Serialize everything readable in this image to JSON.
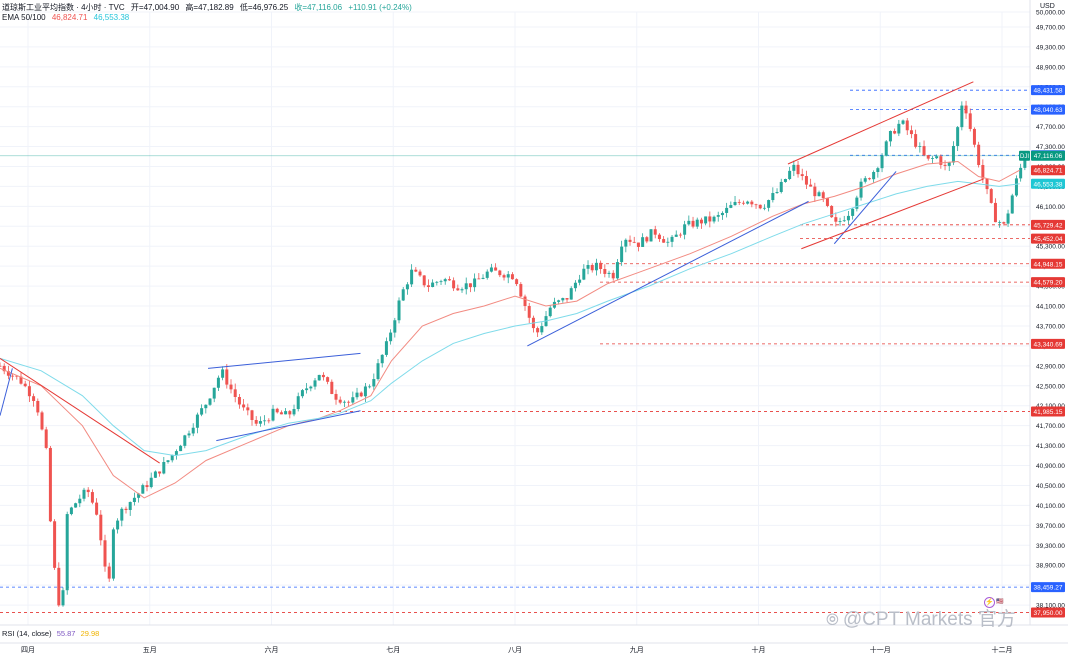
{
  "header": {
    "symbol": "道琼斯工业平均指数 · 4小时 · TVC",
    "open": "开=47,004.90",
    "high": "高=47,182.89",
    "low": "低=46,976.25",
    "close": "收=47,116.06",
    "change": "+110.91 (+0.24%)",
    "ema_label": "EMA 50/100",
    "ema50": "46,824.71",
    "ema100": "46,553.38"
  },
  "currency": "USD",
  "rsi": {
    "label": "RSI (14, close)",
    "value1": "55.87",
    "value2": "29.98"
  },
  "watermark": "@CPT Markets 官方",
  "colors": {
    "up": "#26a69a",
    "down": "#ef5350",
    "ema50": "#f28b82",
    "ema100": "#7fdbea",
    "trend_red": "#e53935",
    "trend_blue": "#3b5fd9",
    "level_red": "#e53935",
    "level_blue": "#2962ff"
  },
  "chart_data": {
    "type": "candlestick",
    "title": "道琼斯工业平均指数 · 4小时 · TVC",
    "y_axis": {
      "min": 37700,
      "max": 50000,
      "ticks": [
        38100,
        38500,
        38900,
        39300,
        39700,
        40100,
        40500,
        40900,
        41300,
        41700,
        42100,
        42500,
        42900,
        43300,
        43700,
        44100,
        44500,
        44900,
        45300,
        45700,
        46100,
        46500,
        46900,
        47300,
        47700,
        48100,
        48500,
        48900,
        49300,
        49700,
        50000
      ]
    },
    "x_axis": {
      "labels": [
        "四月",
        "五月",
        "六月",
        "七月",
        "八月",
        "九月",
        "十月",
        "十一月",
        "十二月"
      ]
    },
    "series": [
      {
        "name": "EMA 50",
        "points": [
          [
            0,
            42850
          ],
          [
            0.04,
            42500
          ],
          [
            0.08,
            41700
          ],
          [
            0.11,
            40700
          ],
          [
            0.14,
            40250
          ],
          [
            0.17,
            40550
          ],
          [
            0.2,
            41000
          ],
          [
            0.24,
            41350
          ],
          [
            0.28,
            41700
          ],
          [
            0.31,
            41850
          ],
          [
            0.33,
            42000
          ],
          [
            0.36,
            42300
          ],
          [
            0.38,
            43000
          ],
          [
            0.41,
            43700
          ],
          [
            0.44,
            43950
          ],
          [
            0.47,
            44100
          ],
          [
            0.5,
            44300
          ],
          [
            0.53,
            44100
          ],
          [
            0.56,
            44200
          ],
          [
            0.59,
            44550
          ],
          [
            0.63,
            44850
          ],
          [
            0.67,
            45150
          ],
          [
            0.71,
            45500
          ],
          [
            0.75,
            45900
          ],
          [
            0.78,
            46150
          ],
          [
            0.81,
            46300
          ],
          [
            0.84,
            46500
          ],
          [
            0.87,
            46750
          ],
          [
            0.9,
            46950
          ],
          [
            0.93,
            47000
          ],
          [
            0.95,
            46700
          ],
          [
            0.97,
            46600
          ],
          [
            0.99,
            46824.71
          ]
        ]
      },
      {
        "name": "EMA 100",
        "points": [
          [
            0,
            43050
          ],
          [
            0.04,
            42800
          ],
          [
            0.08,
            42300
          ],
          [
            0.11,
            41700
          ],
          [
            0.14,
            41200
          ],
          [
            0.17,
            41100
          ],
          [
            0.2,
            41200
          ],
          [
            0.24,
            41500
          ],
          [
            0.28,
            41750
          ],
          [
            0.31,
            41850
          ],
          [
            0.33,
            41950
          ],
          [
            0.36,
            42200
          ],
          [
            0.38,
            42550
          ],
          [
            0.41,
            43000
          ],
          [
            0.44,
            43350
          ],
          [
            0.47,
            43550
          ],
          [
            0.5,
            43700
          ],
          [
            0.53,
            43800
          ],
          [
            0.56,
            43950
          ],
          [
            0.59,
            44200
          ],
          [
            0.63,
            44500
          ],
          [
            0.67,
            44850
          ],
          [
            0.71,
            45150
          ],
          [
            0.75,
            45500
          ],
          [
            0.78,
            45750
          ],
          [
            0.81,
            45950
          ],
          [
            0.84,
            46150
          ],
          [
            0.87,
            46350
          ],
          [
            0.9,
            46500
          ],
          [
            0.93,
            46600
          ],
          [
            0.95,
            46550
          ],
          [
            0.97,
            46500
          ],
          [
            0.99,
            46553.38
          ]
        ]
      }
    ],
    "anchors": [
      [
        0,
        42900
      ],
      [
        0.02,
        42600
      ],
      [
        0.035,
        42200
      ],
      [
        0.045,
        41150
      ],
      [
        0.05,
        39400
      ],
      [
        0.055,
        38400
      ],
      [
        0.06,
        37850
      ],
      [
        0.065,
        39900
      ],
      [
        0.075,
        40200
      ],
      [
        0.085,
        40400
      ],
      [
        0.095,
        39900
      ],
      [
        0.105,
        38300
      ],
      [
        0.11,
        39700
      ],
      [
        0.12,
        40050
      ],
      [
        0.135,
        40350
      ],
      [
        0.15,
        40700
      ],
      [
        0.165,
        41050
      ],
      [
        0.18,
        41500
      ],
      [
        0.2,
        42150
      ],
      [
        0.215,
        42800
      ],
      [
        0.225,
        42400
      ],
      [
        0.235,
        42050
      ],
      [
        0.25,
        41700
      ],
      [
        0.265,
        41950
      ],
      [
        0.28,
        41900
      ],
      [
        0.295,
        42400
      ],
      [
        0.31,
        42750
      ],
      [
        0.325,
        42300
      ],
      [
        0.34,
        42150
      ],
      [
        0.36,
        42550
      ],
      [
        0.375,
        43300
      ],
      [
        0.39,
        44350
      ],
      [
        0.4,
        44800
      ],
      [
        0.415,
        44500
      ],
      [
        0.43,
        44650
      ],
      [
        0.445,
        44500
      ],
      [
        0.46,
        44550
      ],
      [
        0.475,
        44800
      ],
      [
        0.49,
        44750
      ],
      [
        0.5,
        44700
      ],
      [
        0.51,
        44100
      ],
      [
        0.52,
        43500
      ],
      [
        0.535,
        44100
      ],
      [
        0.55,
        44250
      ],
      [
        0.565,
        44800
      ],
      [
        0.58,
        44900
      ],
      [
        0.595,
        44700
      ],
      [
        0.605,
        45500
      ],
      [
        0.62,
        45350
      ],
      [
        0.635,
        45600
      ],
      [
        0.65,
        45350
      ],
      [
        0.665,
        45700
      ],
      [
        0.68,
        45800
      ],
      [
        0.695,
        45850
      ],
      [
        0.71,
        46100
      ],
      [
        0.725,
        46250
      ],
      [
        0.74,
        46100
      ],
      [
        0.755,
        46400
      ],
      [
        0.77,
        46900
      ],
      [
        0.785,
        46500
      ],
      [
        0.8,
        46200
      ],
      [
        0.81,
        45700
      ],
      [
        0.825,
        46000
      ],
      [
        0.835,
        46500
      ],
      [
        0.85,
        46850
      ],
      [
        0.865,
        47550
      ],
      [
        0.875,
        47800
      ],
      [
        0.885,
        47500
      ],
      [
        0.9,
        47000
      ],
      [
        0.91,
        47100
      ],
      [
        0.92,
        46800
      ],
      [
        0.93,
        47700
      ],
      [
        0.935,
        48300
      ],
      [
        0.945,
        47400
      ],
      [
        0.955,
        46600
      ],
      [
        0.965,
        45900
      ],
      [
        0.975,
        45700
      ],
      [
        0.985,
        46500
      ],
      [
        0.995,
        47116.06
      ]
    ],
    "trendlines": [
      {
        "color": "red",
        "from": [
          0.0,
          43050
        ],
        "to": [
          0.155,
          40950
        ]
      },
      {
        "color": "blue",
        "from": [
          0.0,
          41900
        ],
        "to": [
          0.012,
          42850
        ]
      },
      {
        "color": "blue",
        "from": [
          0.202,
          42850
        ],
        "to": [
          0.35,
          43150
        ]
      },
      {
        "color": "blue",
        "from": [
          0.21,
          41400
        ],
        "to": [
          0.35,
          42000
        ]
      },
      {
        "color": "blue",
        "from": [
          0.512,
          43300
        ],
        "to": [
          0.785,
          46200
        ]
      },
      {
        "color": "blue",
        "from": [
          0.81,
          45350
        ],
        "to": [
          0.87,
          46800
        ]
      },
      {
        "color": "red",
        "from": [
          0.765,
          46950
        ],
        "to": [
          0.945,
          48600
        ]
      },
      {
        "color": "red",
        "from": [
          0.778,
          45250
        ],
        "to": [
          0.955,
          46650
        ]
      }
    ],
    "levels": [
      {
        "label": "48,431.58",
        "value": 48431.58,
        "color": "blue"
      },
      {
        "label": "48,040.63",
        "value": 48040.63,
        "color": "blue"
      },
      {
        "label": "47,125.65",
        "value": 47125.65,
        "color": "blue"
      },
      {
        "label": "47,116.06",
        "value": 47116.06,
        "color": "teal",
        "current": true
      },
      {
        "label": "46,824.71",
        "value": 46824.71,
        "color": "red",
        "ema": true
      },
      {
        "label": "46,553.38",
        "value": 46553.38,
        "color": "cyan",
        "ema": true
      },
      {
        "label": "45,729.42",
        "value": 45729.42,
        "color": "red"
      },
      {
        "label": "45,452.04",
        "value": 45452.04,
        "color": "red"
      },
      {
        "label": "44,948.15",
        "value": 44948.15,
        "color": "red"
      },
      {
        "label": "44,579.20",
        "value": 44579.2,
        "color": "red"
      },
      {
        "label": "43,340.69",
        "value": 43340.69,
        "color": "red"
      },
      {
        "label": "41,985.15",
        "value": 41985.15,
        "color": "red"
      },
      {
        "label": "38,459.27",
        "value": 38459.27,
        "color": "blue"
      },
      {
        "label": "37,950.00",
        "value": 37950,
        "color": "red"
      }
    ]
  }
}
